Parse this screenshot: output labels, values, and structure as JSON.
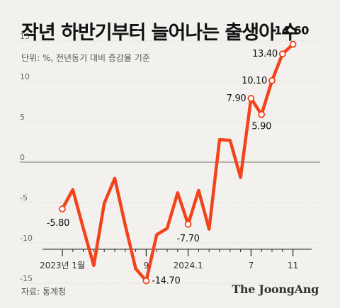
{
  "title": "작년 하반기부터 늘어나는 출생아 수",
  "subtitle": "단위: %, 전년동기 대비 증감율 기준",
  "source": "자료: 통계청",
  "brand": "The JoongAng",
  "chart_data": {
    "type": "line",
    "title": "작년 하반기부터 늘어나는 출생아 수",
    "ylabel": "",
    "xlabel": "",
    "ylim": [
      -16,
      16
    ],
    "yticks": [
      15,
      10,
      5,
      0,
      -5,
      -10,
      -15
    ],
    "grid": true,
    "x_tick_labels": [
      {
        "index": 0,
        "label": "2023년 1월"
      },
      {
        "index": 8,
        "label": "9"
      },
      {
        "index": 12,
        "label": "2024.1"
      },
      {
        "index": 18,
        "label": "7"
      },
      {
        "index": 22,
        "label": "11"
      }
    ],
    "x": [
      "2023-01",
      "2023-02",
      "2023-03",
      "2023-04",
      "2023-05",
      "2023-06",
      "2023-07",
      "2023-08",
      "2023-09",
      "2023-10",
      "2023-11",
      "2023-12",
      "2024-01",
      "2024-02",
      "2024-03",
      "2024-04",
      "2024-05",
      "2024-06",
      "2024-07",
      "2024-08",
      "2024-09",
      "2024-10",
      "2024-11"
    ],
    "values": [
      -5.8,
      -3.4,
      -8.2,
      -12.8,
      -5.1,
      -2.0,
      -7.8,
      -13.2,
      -14.7,
      -9.0,
      -8.2,
      -3.8,
      -7.7,
      -3.5,
      -8.3,
      2.8,
      2.7,
      -1.9,
      7.9,
      5.9,
      10.1,
      13.4,
      14.6
    ],
    "color": "#f2431c",
    "annotations": [
      {
        "index": 0,
        "label": "-5.80"
      },
      {
        "index": 8,
        "label": "-14.70"
      },
      {
        "index": 12,
        "label": "-7.70"
      },
      {
        "index": 18,
        "label": "7.90"
      },
      {
        "index": 19,
        "label": "5.90"
      },
      {
        "index": 20,
        "label": "10.10"
      },
      {
        "index": 21,
        "label": "13.40"
      },
      {
        "index": 22,
        "label": "14.60"
      }
    ]
  }
}
